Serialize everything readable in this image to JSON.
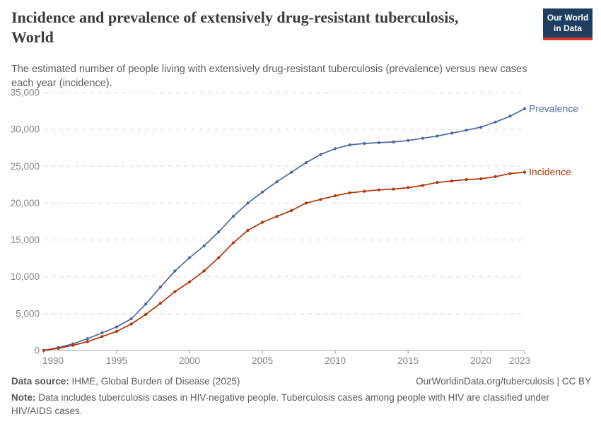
{
  "header": {
    "title_line1": "Incidence and prevalence of extensively drug-resistant tuberculosis,",
    "title_line2": "World",
    "subtitle": "The estimated number of people living with extensively drug-resistant tuberculosis (prevalence) versus new cases each year (incidence)."
  },
  "logo": {
    "line1": "Our World",
    "line2": "in Data",
    "bg_color": "#1d3d63",
    "bar_color": "#cf3a2b"
  },
  "footer": {
    "datasource_label": "Data source:",
    "datasource_value": " IHME, Global Burden of Disease (2025)",
    "link": "OurWorldinData.org/tuberculosis | CC BY",
    "note_label": "Note:",
    "note_value": " Data includes tuberculosis cases in HIV-negative people. Tuberculosis cases among people with HIV are classified under HIV/AIDS cases."
  },
  "chart_data": {
    "type": "line",
    "title": "Incidence and prevalence of extensively drug-resistant tuberculosis, World",
    "x": [
      1990,
      1991,
      1992,
      1993,
      1994,
      1995,
      1996,
      1997,
      1998,
      1999,
      2000,
      2001,
      2002,
      2003,
      2004,
      2005,
      2006,
      2007,
      2008,
      2009,
      2010,
      2011,
      2012,
      2013,
      2014,
      2015,
      2016,
      2017,
      2018,
      2019,
      2020,
      2021,
      2022,
      2023
    ],
    "series": [
      {
        "name": "Prevalence",
        "color": "#4C6A9C",
        "values": [
          30,
          400,
          900,
          1600,
          2400,
          3200,
          4300,
          6300,
          8600,
          10800,
          12600,
          14200,
          16100,
          18200,
          20000,
          21500,
          22900,
          24200,
          25500,
          26600,
          27400,
          27900,
          28100,
          28200,
          28300,
          28500,
          28800,
          29100,
          29500,
          29900,
          30300,
          31000,
          31800,
          32800
        ]
      },
      {
        "name": "Incidence",
        "color": "#B13507",
        "values": [
          20,
          300,
          700,
          1200,
          1900,
          2600,
          3600,
          4900,
          6400,
          8000,
          9300,
          10800,
          12600,
          14600,
          16300,
          17400,
          18200,
          19000,
          20000,
          20500,
          21000,
          21400,
          21600,
          21800,
          21900,
          22100,
          22400,
          22800,
          23000,
          23200,
          23300,
          23600,
          24000,
          24200
        ]
      }
    ],
    "ylim": [
      0,
      35000
    ],
    "yticks": [
      0,
      5000,
      10000,
      15000,
      20000,
      25000,
      30000,
      35000
    ],
    "xticks": [
      1990,
      1995,
      2000,
      2005,
      2010,
      2015,
      2020,
      2023
    ],
    "grid": "horizontal dashed",
    "legend_position": "end-of-line labels",
    "axis_label_color": "#858585",
    "gridline_color": "#d9d9d9",
    "axis_line_color": "#a5a5a5"
  }
}
